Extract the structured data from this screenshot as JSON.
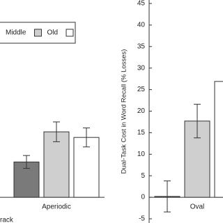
{
  "chart_data": [
    {
      "type": "bar",
      "x_label": "rack",
      "categories": [
        "Aperiodic"
      ],
      "ylim": [
        -5,
        45
      ],
      "legend": "upper left",
      "series": [
        {
          "color": "#7a7a7a",
          "values": [
            8.2
          ],
          "errors": [
            1.5
          ]
        },
        {
          "name": "Middle",
          "color": "#cfcfcf",
          "values": [
            15.2
          ],
          "errors": [
            2.3
          ]
        },
        {
          "name": "Old",
          "color": "#ffffff",
          "values": [
            13.9
          ],
          "errors": [
            2.2
          ]
        }
      ]
    },
    {
      "type": "bar",
      "y_label": "Dual-Task Cost in Word Recall (% Losses)",
      "categories": [
        "Oval"
      ],
      "ylim": [
        -5,
        45
      ],
      "yticks": [
        -5,
        0,
        5,
        10,
        15,
        20,
        25,
        30,
        35,
        40,
        45
      ],
      "series": [
        {
          "color": "#7a7a7a",
          "values": [
            0.2
          ],
          "errors": [
            3.6
          ]
        },
        {
          "color": "#cfcfcf",
          "values": [
            17.7
          ],
          "errors": [
            3.9
          ]
        },
        {
          "color": "#ffffff",
          "values": [
            26.9
          ],
          "errors": [
            null
          ]
        }
      ]
    }
  ]
}
